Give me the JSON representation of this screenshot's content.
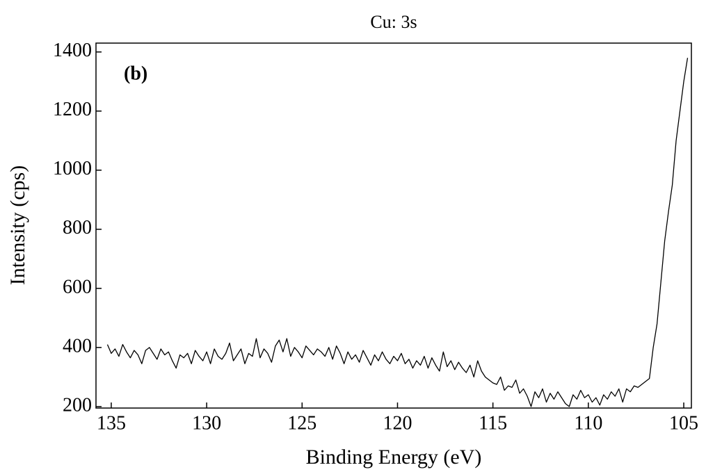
{
  "chart_data": {
    "type": "line",
    "title": "Cu: 3s",
    "annotation": "(b)",
    "x_label": "Binding Energy (eV)",
    "y_label": "Intensity (cps)",
    "xlim": [
      135.8,
      104.6
    ],
    "ylim": [
      195,
      1430
    ],
    "xticks": [
      135,
      130,
      125,
      120,
      115,
      110,
      105
    ],
    "yticks": [
      200,
      400,
      600,
      800,
      1000,
      1200,
      1400
    ],
    "grid": false,
    "series": [
      {
        "color": "#000000",
        "x": [
          135.2,
          135.0,
          134.8,
          134.6,
          134.4,
          134.2,
          134.0,
          133.8,
          133.6,
          133.4,
          133.2,
          133.0,
          132.8,
          132.6,
          132.4,
          132.2,
          132.0,
          131.8,
          131.6,
          131.4,
          131.2,
          131.0,
          130.8,
          130.6,
          130.4,
          130.2,
          130.0,
          129.8,
          129.6,
          129.4,
          129.2,
          129.0,
          128.8,
          128.6,
          128.4,
          128.2,
          128.0,
          127.8,
          127.6,
          127.4,
          127.2,
          127.0,
          126.8,
          126.6,
          126.4,
          126.2,
          126.0,
          125.8,
          125.6,
          125.4,
          125.2,
          125.0,
          124.8,
          124.6,
          124.4,
          124.2,
          124.0,
          123.8,
          123.6,
          123.4,
          123.2,
          123.0,
          122.8,
          122.6,
          122.4,
          122.2,
          122.0,
          121.8,
          121.6,
          121.4,
          121.2,
          121.0,
          120.8,
          120.6,
          120.4,
          120.2,
          120.0,
          119.8,
          119.6,
          119.4,
          119.2,
          119.0,
          118.8,
          118.6,
          118.4,
          118.2,
          118.0,
          117.8,
          117.6,
          117.4,
          117.2,
          117.0,
          116.8,
          116.6,
          116.4,
          116.2,
          116.0,
          115.8,
          115.6,
          115.4,
          115.2,
          115.0,
          114.8,
          114.6,
          114.4,
          114.2,
          114.0,
          113.8,
          113.6,
          113.4,
          113.2,
          113.0,
          112.8,
          112.6,
          112.4,
          112.2,
          112.0,
          111.8,
          111.6,
          111.4,
          111.2,
          111.0,
          110.8,
          110.6,
          110.4,
          110.2,
          110.0,
          109.8,
          109.6,
          109.4,
          109.2,
          109.0,
          108.8,
          108.6,
          108.4,
          108.2,
          108.0,
          107.8,
          107.6,
          107.4,
          107.2,
          107.0,
          106.8,
          106.6,
          106.4,
          106.2,
          106.0,
          105.8,
          105.6,
          105.4,
          105.2,
          105.0,
          104.8
        ],
        "values": [
          410,
          380,
          395,
          370,
          410,
          385,
          365,
          390,
          375,
          345,
          390,
          400,
          380,
          360,
          395,
          375,
          385,
          355,
          330,
          375,
          365,
          380,
          345,
          390,
          370,
          355,
          385,
          345,
          395,
          370,
          360,
          380,
          415,
          355,
          375,
          395,
          345,
          380,
          370,
          430,
          365,
          395,
          380,
          350,
          405,
          425,
          385,
          430,
          370,
          400,
          385,
          365,
          405,
          390,
          375,
          395,
          385,
          370,
          400,
          360,
          405,
          380,
          345,
          385,
          360,
          375,
          350,
          390,
          365,
          340,
          375,
          355,
          385,
          360,
          345,
          370,
          355,
          380,
          345,
          360,
          330,
          355,
          340,
          370,
          330,
          365,
          340,
          320,
          385,
          335,
          355,
          325,
          350,
          330,
          315,
          340,
          300,
          355,
          320,
          300,
          290,
          280,
          275,
          300,
          255,
          270,
          265,
          290,
          245,
          260,
          235,
          200,
          250,
          230,
          260,
          215,
          245,
          225,
          250,
          230,
          210,
          200,
          240,
          225,
          255,
          230,
          240,
          215,
          230,
          205,
          240,
          225,
          250,
          235,
          260,
          215,
          260,
          250,
          270,
          265,
          275,
          285,
          295,
          400,
          480,
          620,
          760,
          860,
          950,
          1100,
          1200,
          1300,
          1380
        ]
      }
    ]
  }
}
